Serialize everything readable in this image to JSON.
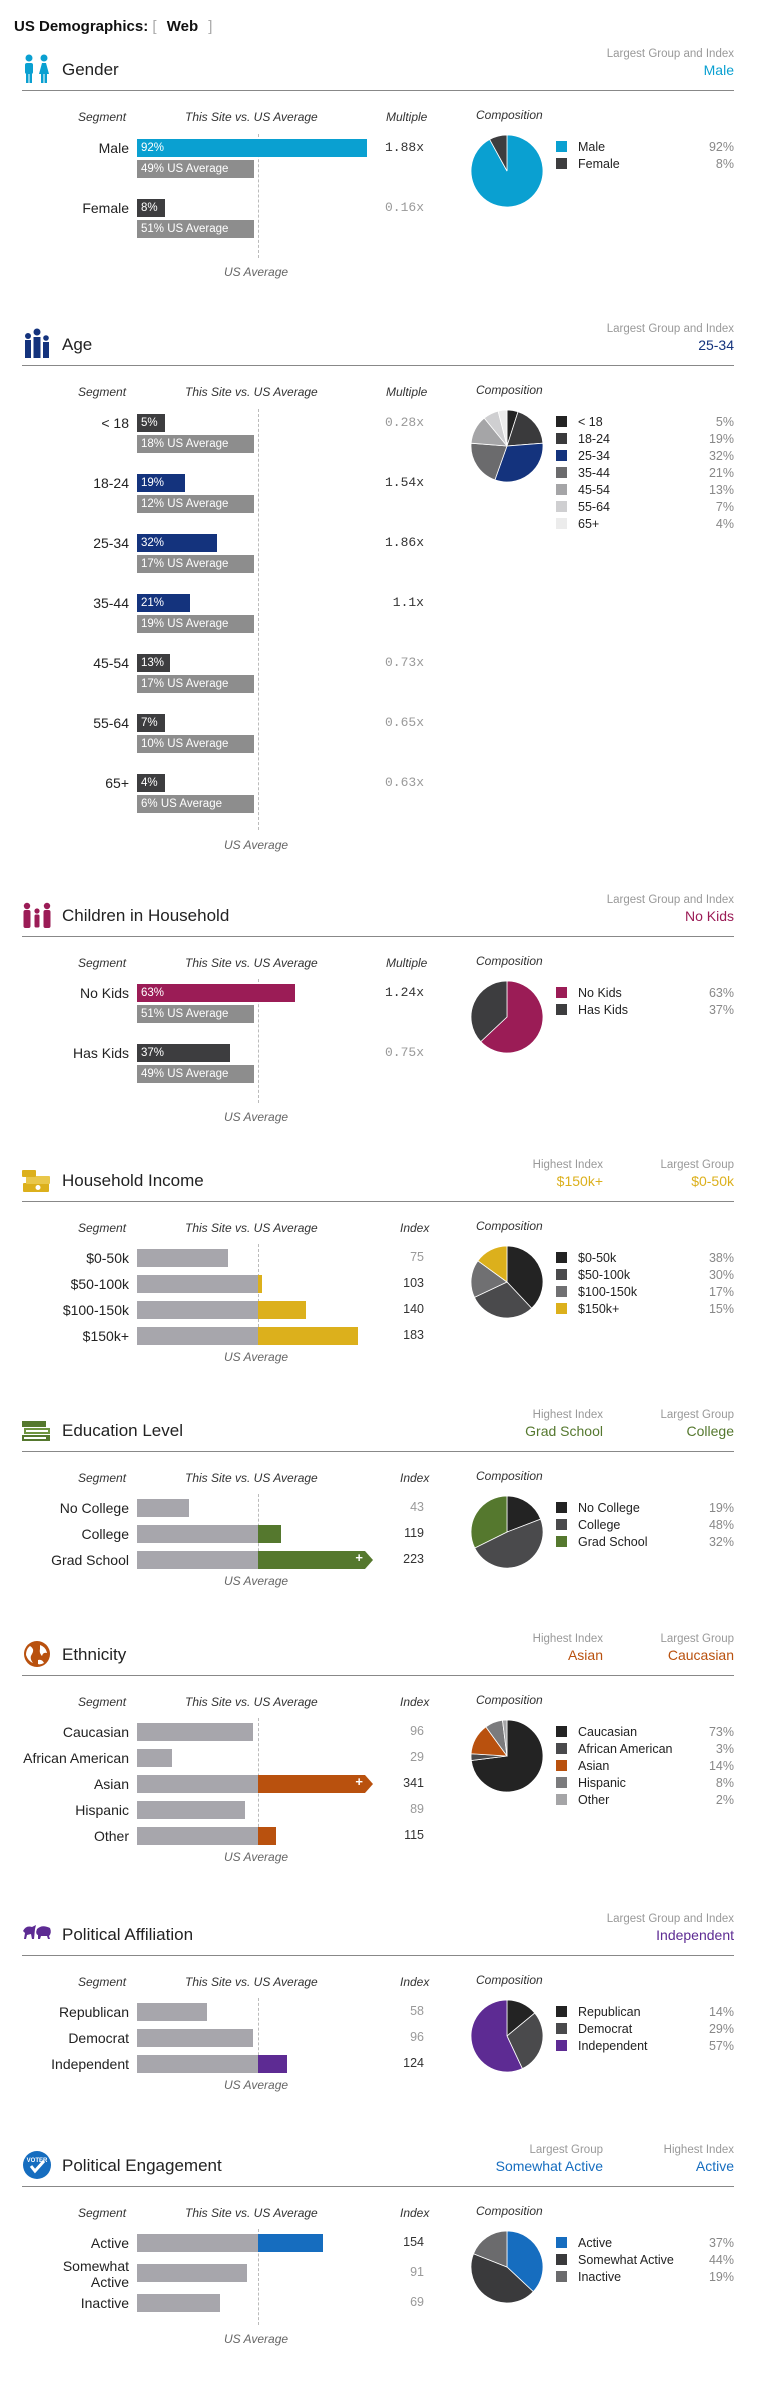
{
  "header": {
    "title": "US Demographics:",
    "bracket_open": "[",
    "bracket_close": "]",
    "view": "Web"
  },
  "labels": {
    "segment": "Segment",
    "site_vs_us": "This Site vs. US Average",
    "multiple": "Multiple",
    "index": "Index",
    "composition": "Composition",
    "us_average": "US Average",
    "us_suffix": "US Average",
    "largest_group_and_index": "Largest Group and Index",
    "highest_index": "Highest Index",
    "largest_group": "Largest Group"
  },
  "colors": {
    "gender": "#0aa0d1",
    "age": "#14337d",
    "children": "#9b1c56",
    "income": "#dcb01c",
    "education": "#55782e",
    "ethnicity": "#b9510e",
    "political": "#5d2b93",
    "engagement": "#166dbf",
    "dark": "#3d3d3f",
    "gray": "#8d8d8d"
  },
  "sections": {
    "gender": {
      "title": "Gender",
      "icon": "gender-icon",
      "headers": [
        {
          "label": "Largest Group and Index",
          "value": "Male"
        }
      ],
      "rows": [
        {
          "label": "Male",
          "site": 92,
          "site_text": "92%",
          "us": 49,
          "us_text": "49%",
          "mult": "1.88x",
          "highlight": true
        },
        {
          "label": "Female",
          "site": 8,
          "site_text": "8%",
          "us": 51,
          "us_text": "51%",
          "mult": "0.16x",
          "highlight": false
        }
      ],
      "legend": [
        {
          "label": "Male",
          "pct": "92%",
          "value": 92,
          "color": "#0aa0d1"
        },
        {
          "label": "Female",
          "pct": "8%",
          "value": 8,
          "color": "#3d3d3f"
        }
      ]
    },
    "age": {
      "title": "Age",
      "icon": "age-icon",
      "headers": [
        {
          "label": "Largest Group and Index",
          "value": "25-34"
        }
      ],
      "rows": [
        {
          "label": "< 18",
          "site": 5,
          "site_text": "5%",
          "us": 18,
          "us_text": "18%",
          "mult": "0.28x",
          "highlight": false
        },
        {
          "label": "18-24",
          "site": 19,
          "site_text": "19%",
          "us": 12,
          "us_text": "12%",
          "mult": "1.54x",
          "highlight": true
        },
        {
          "label": "25-34",
          "site": 32,
          "site_text": "32%",
          "us": 17,
          "us_text": "17%",
          "mult": "1.86x",
          "highlight": true
        },
        {
          "label": "35-44",
          "site": 21,
          "site_text": "21%",
          "us": 19,
          "us_text": "19%",
          "mult": "1.1x",
          "highlight": true
        },
        {
          "label": "45-54",
          "site": 13,
          "site_text": "13%",
          "us": 17,
          "us_text": "17%",
          "mult": "0.73x",
          "highlight": false
        },
        {
          "label": "55-64",
          "site": 7,
          "site_text": "7%",
          "us": 10,
          "us_text": "10%",
          "mult": "0.65x",
          "highlight": false
        },
        {
          "label": "65+",
          "site": 4,
          "site_text": "4%",
          "us": 6,
          "us_text": "6%",
          "mult": "0.63x",
          "highlight": false
        }
      ],
      "legend": [
        {
          "label": "< 18",
          "pct": "5%",
          "value": 5,
          "color": "#232323"
        },
        {
          "label": "18-24",
          "pct": "19%",
          "value": 19,
          "color": "#3a3a3c"
        },
        {
          "label": "25-34",
          "pct": "32%",
          "value": 32,
          "color": "#14337d"
        },
        {
          "label": "35-44",
          "pct": "21%",
          "value": 21,
          "color": "#6b6b6d"
        },
        {
          "label": "45-54",
          "pct": "13%",
          "value": 13,
          "color": "#a5a5a7"
        },
        {
          "label": "55-64",
          "pct": "7%",
          "value": 7,
          "color": "#cfcfd1"
        },
        {
          "label": "65+",
          "pct": "4%",
          "value": 4,
          "color": "#ececec"
        }
      ]
    },
    "children": {
      "title": "Children in Household",
      "icon": "family-icon",
      "headers": [
        {
          "label": "Largest Group and Index",
          "value": "No Kids"
        }
      ],
      "rows": [
        {
          "label": "No Kids",
          "site": 63,
          "site_text": "63%",
          "us": 51,
          "us_text": "51%",
          "mult": "1.24x",
          "highlight": true
        },
        {
          "label": "Has Kids",
          "site": 37,
          "site_text": "37%",
          "us": 49,
          "us_text": "49%",
          "mult": "0.75x",
          "highlight": false
        }
      ],
      "legend": [
        {
          "label": "No Kids",
          "pct": "63%",
          "value": 63,
          "color": "#9b1c56"
        },
        {
          "label": "Has Kids",
          "pct": "37%",
          "value": 37,
          "color": "#3d3d3f"
        }
      ]
    },
    "income": {
      "title": "Household Income",
      "icon": "money-icon",
      "headers": [
        {
          "label": "Highest Index",
          "value": "$150k+"
        },
        {
          "label": "Largest Group",
          "value": "$0-50k"
        }
      ],
      "rows": [
        {
          "label": "$0-50k",
          "index": 75,
          "index_text": "75",
          "highlight": false
        },
        {
          "label": "$50-100k",
          "index": 103,
          "index_text": "103",
          "highlight": true
        },
        {
          "label": "$100-150k",
          "index": 140,
          "index_text": "140",
          "highlight": true
        },
        {
          "label": "$150k+",
          "index": 183,
          "index_text": "183",
          "highlight": true
        }
      ],
      "legend": [
        {
          "label": "$0-50k",
          "pct": "38%",
          "value": 38,
          "color": "#232323"
        },
        {
          "label": "$50-100k",
          "pct": "30%",
          "value": 30,
          "color": "#4a4a4c"
        },
        {
          "label": "$100-150k",
          "pct": "17%",
          "value": 17,
          "color": "#707072"
        },
        {
          "label": "$150k+",
          "pct": "15%",
          "value": 15,
          "color": "#dcb01c"
        }
      ]
    },
    "education": {
      "title": "Education Level",
      "icon": "books-icon",
      "headers": [
        {
          "label": "Highest Index",
          "value": "Grad School"
        },
        {
          "label": "Largest Group",
          "value": "College"
        }
      ],
      "rows": [
        {
          "label": "No College",
          "index": 43,
          "index_text": "43",
          "highlight": false
        },
        {
          "label": "College",
          "index": 119,
          "index_text": "119",
          "highlight": true
        },
        {
          "label": "Grad School",
          "index": 223,
          "index_text": "223",
          "highlight": true,
          "overflow": true
        }
      ],
      "legend": [
        {
          "label": "No College",
          "pct": "19%",
          "value": 19,
          "color": "#232323"
        },
        {
          "label": "College",
          "pct": "48%",
          "value": 48,
          "color": "#4a4a4c"
        },
        {
          "label": "Grad School",
          "pct": "32%",
          "value": 32,
          "color": "#55782e"
        }
      ]
    },
    "ethnicity": {
      "title": "Ethnicity",
      "icon": "globe-icon",
      "headers": [
        {
          "label": "Highest Index",
          "value": "Asian"
        },
        {
          "label": "Largest Group",
          "value": "Caucasian"
        }
      ],
      "rows": [
        {
          "label": "Caucasian",
          "index": 96,
          "index_text": "96",
          "highlight": false
        },
        {
          "label": "African American",
          "index": 29,
          "index_text": "29",
          "highlight": false
        },
        {
          "label": "Asian",
          "index": 341,
          "index_text": "341",
          "highlight": true,
          "overflow": true
        },
        {
          "label": "Hispanic",
          "index": 89,
          "index_text": "89",
          "highlight": false
        },
        {
          "label": "Other",
          "index": 115,
          "index_text": "115",
          "highlight": true
        }
      ],
      "legend": [
        {
          "label": "Caucasian",
          "pct": "73%",
          "value": 73,
          "color": "#232323"
        },
        {
          "label": "African American",
          "pct": "3%",
          "value": 3,
          "color": "#4a4a4c"
        },
        {
          "label": "Asian",
          "pct": "14%",
          "value": 14,
          "color": "#b9510e"
        },
        {
          "label": "Hispanic",
          "pct": "8%",
          "value": 8,
          "color": "#7b7b7d"
        },
        {
          "label": "Other",
          "pct": "2%",
          "value": 2,
          "color": "#a5a5a7"
        }
      ]
    },
    "political": {
      "title": "Political Affiliation",
      "icon": "elephant-donkey-icon",
      "headers": [
        {
          "label": "Largest Group and Index",
          "value": "Independent"
        }
      ],
      "rows": [
        {
          "label": "Republican",
          "index": 58,
          "index_text": "58",
          "highlight": false
        },
        {
          "label": "Democrat",
          "index": 96,
          "index_text": "96",
          "highlight": false
        },
        {
          "label": "Independent",
          "index": 124,
          "index_text": "124",
          "highlight": true
        }
      ],
      "legend": [
        {
          "label": "Republican",
          "pct": "14%",
          "value": 14,
          "color": "#232323"
        },
        {
          "label": "Democrat",
          "pct": "29%",
          "value": 29,
          "color": "#4a4a4c"
        },
        {
          "label": "Independent",
          "pct": "57%",
          "value": 57,
          "color": "#5d2b93"
        }
      ]
    },
    "engagement": {
      "title": "Political Engagement",
      "icon": "voter-badge-icon",
      "badge_text": "VOTER",
      "headers": [
        {
          "label": "Largest Group",
          "value": "Somewhat Active"
        },
        {
          "label": "Highest Index",
          "value": "Active"
        }
      ],
      "rows": [
        {
          "label": "Active",
          "index": 154,
          "index_text": "154",
          "highlight": true
        },
        {
          "label": "Somewhat Active",
          "label_lines": [
            "Somewhat",
            "Active"
          ],
          "index": 91,
          "index_text": "91",
          "highlight": false
        },
        {
          "label": "Inactive",
          "index": 69,
          "index_text": "69",
          "highlight": false
        }
      ],
      "legend": [
        {
          "label": "Active",
          "pct": "37%",
          "value": 37,
          "color": "#166dbf"
        },
        {
          "label": "Somewhat Active",
          "pct": "44%",
          "value": 44,
          "color": "#3a3a3c"
        },
        {
          "label": "Inactive",
          "pct": "19%",
          "value": 19,
          "color": "#6b6b6d"
        }
      ]
    }
  }
}
